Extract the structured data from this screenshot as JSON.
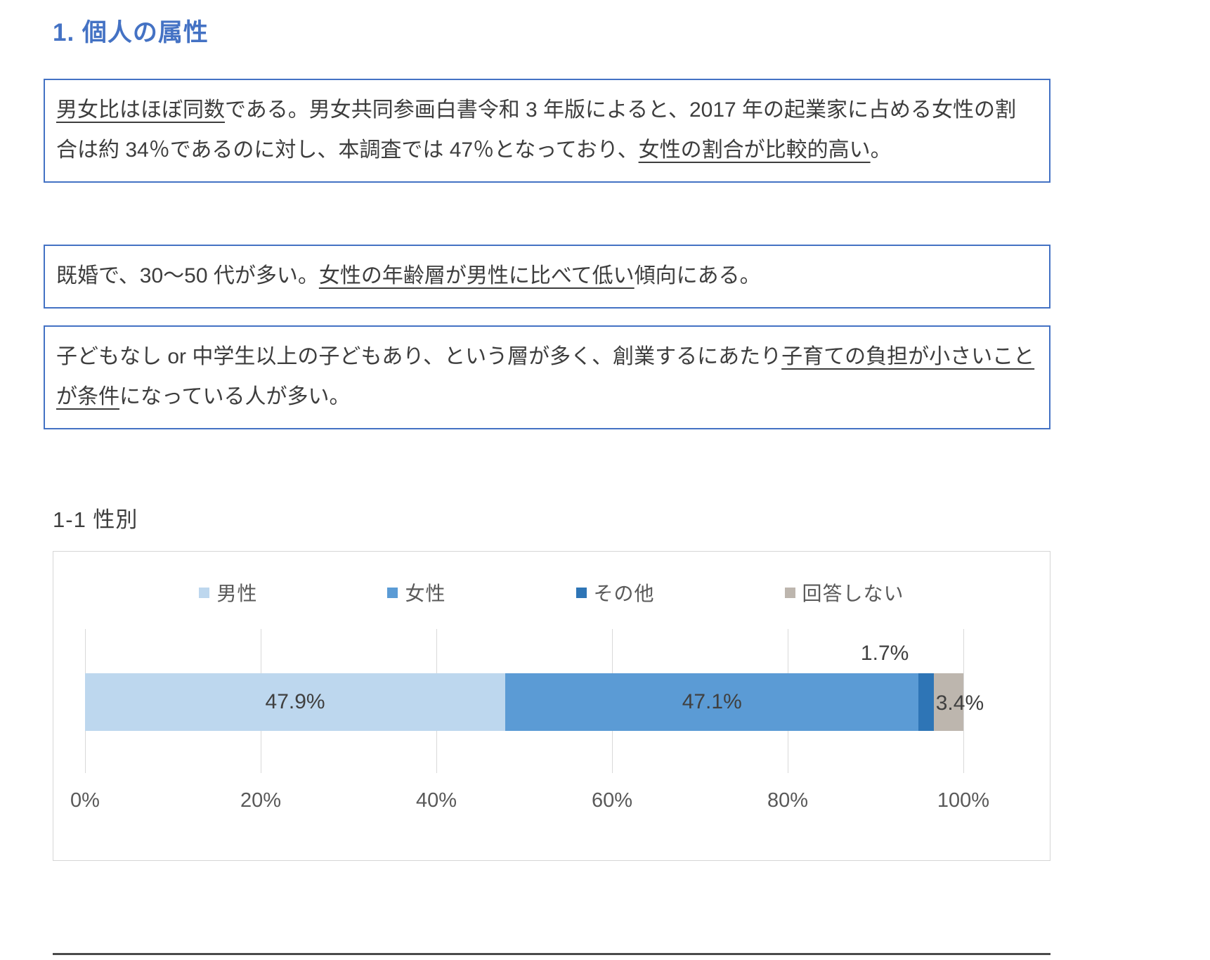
{
  "page": {
    "heading": "1. 個人の属性",
    "section_title": "1-1 性別"
  },
  "notes": [
    {
      "segments": [
        {
          "text": "男女比はほぼ同数",
          "underline": true
        },
        {
          "text": "である。男女共同参画白書令和 3 年版によると、2017 年の起業家に占める女性の割合は約 34％であるのに対し、本調査では 47％となっており、",
          "underline": false
        },
        {
          "text": "女性の割合が比較的高い",
          "underline": true
        },
        {
          "text": "。",
          "underline": false
        }
      ]
    },
    {
      "segments": [
        {
          "text": "既婚で、30〜50 代が多い。",
          "underline": false
        },
        {
          "text": "女性の年齢層が男性に比べて低い",
          "underline": true
        },
        {
          "text": "傾向にある。",
          "underline": false
        }
      ]
    },
    {
      "segments": [
        {
          "text": "子どもなし or 中学生以上の子どもあり、という層が多く、創業するにあたり",
          "underline": false
        },
        {
          "text": "子育ての負担が小さいことが条件",
          "underline": true
        },
        {
          "text": "になっている人が多い。",
          "underline": false
        }
      ]
    }
  ],
  "chart_data": {
    "type": "bar",
    "subtype": "horizontal-stacked",
    "title": "1-1 性別",
    "xlim": [
      0,
      100
    ],
    "grid": true,
    "legend_position": "top",
    "x_ticks": [
      "0%",
      "20%",
      "40%",
      "60%",
      "80%",
      "100%"
    ],
    "series": [
      {
        "name": "男性",
        "value": 47.9,
        "label": "47.9%",
        "color": "#BDD7EE",
        "label_position": "inside"
      },
      {
        "name": "女性",
        "value": 47.1,
        "label": "47.1%",
        "color": "#5B9BD5",
        "label_position": "inside"
      },
      {
        "name": "その他",
        "value": 1.7,
        "label": "1.7%",
        "color": "#2E75B6",
        "label_position": "above",
        "label_offset": -4.8
      },
      {
        "name": "回答しない",
        "value": 3.4,
        "label": "3.4%",
        "color": "#BDB6AE",
        "label_position": "right"
      }
    ]
  }
}
